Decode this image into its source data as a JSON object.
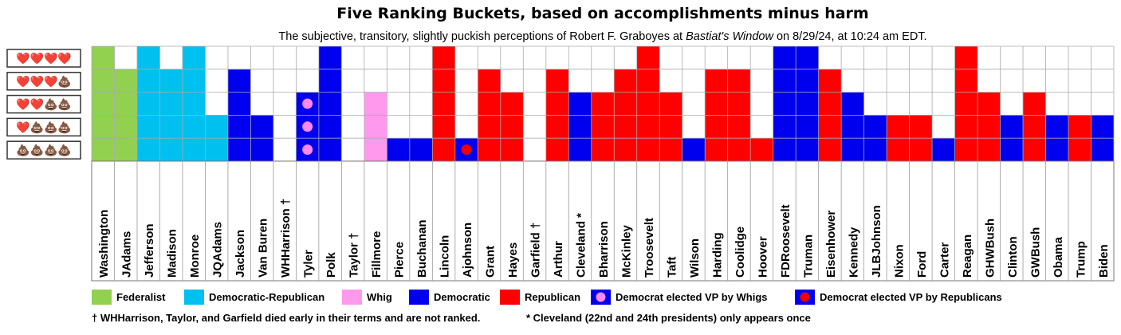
{
  "chart_data": {
    "type": "heatmap",
    "title": "Five Ranking Buckets, based on accomplishments minus harm",
    "subtitle": {
      "before": "The subjective, transitory, slightly puckish perceptions of Robert F. Graboyes at ",
      "italic": "Bastiat's Window",
      "after": "  on 8/29/24, at 10:24 am EDT."
    },
    "rank_labels": [
      "❤️❤️❤️❤️",
      "❤️❤️❤️💩",
      "❤️❤️💩💩",
      "❤️💩💩💩",
      "💩💩💩💩"
    ],
    "presidents": [
      {
        "name": "Washington",
        "party": "Federalist",
        "rank": 4
      },
      {
        "name": "JAdams",
        "party": "Federalist",
        "rank": 3
      },
      {
        "name": "Jefferson",
        "party": "Democratic-Republican",
        "rank": 4
      },
      {
        "name": "Madison",
        "party": "Democratic-Republican",
        "rank": 3
      },
      {
        "name": "Monroe",
        "party": "Democratic-Republican",
        "rank": 4
      },
      {
        "name": "JQAdams",
        "party": "Democratic-Republican",
        "rank": 1
      },
      {
        "name": "Jackson",
        "party": "Democratic",
        "rank": 3
      },
      {
        "name": "Van Buren",
        "party": "Democratic",
        "rank": 1
      },
      {
        "name": "WHHarrison †",
        "party": "",
        "rank": null
      },
      {
        "name": "Tyler",
        "party": "Democrat elected VP by Whigs",
        "rank": 2
      },
      {
        "name": "Polk",
        "party": "Democratic",
        "rank": 4
      },
      {
        "name": "Taylor †",
        "party": "",
        "rank": null
      },
      {
        "name": "Fillmore",
        "party": "Whig",
        "rank": 2
      },
      {
        "name": "Pierce",
        "party": "Democratic",
        "rank": 0
      },
      {
        "name": "Buchanan",
        "party": "Democratic",
        "rank": 0
      },
      {
        "name": "Lincoln",
        "party": "Republican",
        "rank": 4
      },
      {
        "name": "Ajohnson",
        "party": "Democrat elected VP by Republicans",
        "rank": 0
      },
      {
        "name": "Grant",
        "party": "Republican",
        "rank": 3
      },
      {
        "name": "Hayes",
        "party": "Republican",
        "rank": 2
      },
      {
        "name": "Garfield †",
        "party": "",
        "rank": null
      },
      {
        "name": "Arthur",
        "party": "Republican",
        "rank": 3
      },
      {
        "name": "Cleveland *",
        "party": "Democratic",
        "rank": 2
      },
      {
        "name": "Bharrison",
        "party": "Republican",
        "rank": 2
      },
      {
        "name": "McKinley",
        "party": "Republican",
        "rank": 3
      },
      {
        "name": "Troosevelt",
        "party": "Republican",
        "rank": 4
      },
      {
        "name": "Taft",
        "party": "Republican",
        "rank": 2
      },
      {
        "name": "Wilson",
        "party": "Democratic",
        "rank": 0
      },
      {
        "name": "Harding",
        "party": "Republican",
        "rank": 3
      },
      {
        "name": "Coolidge",
        "party": "Republican",
        "rank": 3
      },
      {
        "name": "Hoover",
        "party": "Republican",
        "rank": 0
      },
      {
        "name": "FDRoosevelt",
        "party": "Democratic",
        "rank": 4
      },
      {
        "name": "Truman",
        "party": "Democratic",
        "rank": 4
      },
      {
        "name": "Eisenhower",
        "party": "Republican",
        "rank": 3
      },
      {
        "name": "Kennedy",
        "party": "Democratic",
        "rank": 2
      },
      {
        "name": "JLBJohnson",
        "party": "Democratic",
        "rank": 1
      },
      {
        "name": "Nixon",
        "party": "Republican",
        "rank": 1
      },
      {
        "name": "Ford",
        "party": "Republican",
        "rank": 1
      },
      {
        "name": "Carter",
        "party": "Democratic",
        "rank": 0
      },
      {
        "name": "Reagan",
        "party": "Republican",
        "rank": 4
      },
      {
        "name": "GHWBush",
        "party": "Republican",
        "rank": 2
      },
      {
        "name": "Clinton",
        "party": "Democratic",
        "rank": 1
      },
      {
        "name": "GWBush",
        "party": "Republican",
        "rank": 2
      },
      {
        "name": "Obama",
        "party": "Democratic",
        "rank": 1
      },
      {
        "name": "Trump",
        "party": "Republican",
        "rank": 1
      },
      {
        "name": "Biden",
        "party": "Democratic",
        "rank": 1
      }
    ],
    "legend": [
      {
        "label": "Federalist",
        "color": "#92d050"
      },
      {
        "label": "Democratic-Republican",
        "color": "#00c0f0"
      },
      {
        "label": "Whig",
        "color": "#ff99ee"
      },
      {
        "label": "Democratic",
        "color": "#0000ee"
      },
      {
        "label": "Republican",
        "color": "#ff0000"
      },
      {
        "label": "Democrat elected VP by Whigs",
        "color": "#0000ee",
        "dot": "#ff88ee"
      },
      {
        "label": "Democrat elected VP by Republicans",
        "color": "#0000ee",
        "dot": "#ee0000"
      }
    ],
    "notes": [
      "† WHHarrison, Taylor, and Garfield died early in their terms and are not ranked.",
      "* Cleveland (22nd and 24th presidents) only appears once"
    ]
  }
}
